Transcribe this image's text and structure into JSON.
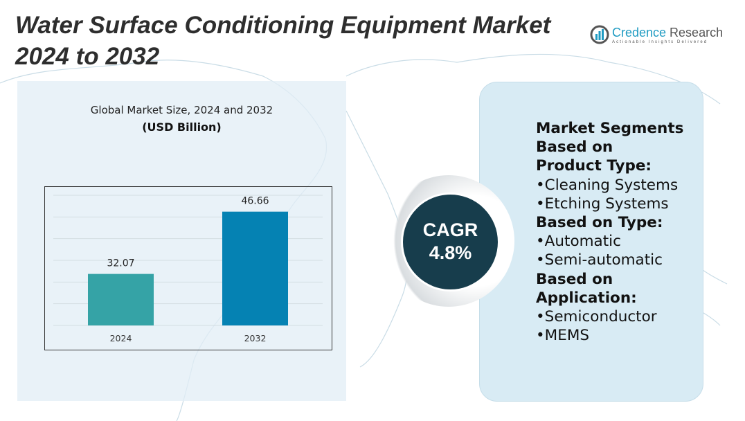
{
  "title_line1": "Water Surface Conditioning Equipment Market",
  "title_line2": "2024 to 2032",
  "logo": {
    "name_part1": "Credence",
    "name_part2": " Research",
    "tagline": "Actionable Insights Delivered"
  },
  "chart_subtitle": "Global Market Size, 2024 and 2032",
  "chart_unit": "(USD Billion)",
  "chart_data": {
    "type": "bar",
    "title": "Global Market Size, 2024 and 2032",
    "ylabel": "USD Billion",
    "categories": [
      "2024",
      "2032"
    ],
    "values": [
      32.07,
      46.66
    ],
    "value_labels": [
      "32.07",
      "46.66"
    ],
    "colors": [
      "#35a3a6",
      "#0582b3"
    ],
    "ylim": [
      20,
      50.5
    ],
    "grid": true
  },
  "cagr": {
    "label": "CAGR",
    "value": "4.8%"
  },
  "segments": {
    "heading": "Market Segments",
    "groups": [
      {
        "title": "Based on Product Type:",
        "items": [
          "•Cleaning Systems",
          "•Etching Systems"
        ]
      },
      {
        "title": "Based on Type:",
        "items": [
          "•Automatic",
          "•Semi-automatic"
        ]
      },
      {
        "title": "Based on Application:",
        "items": [
          "•Semiconductor",
          "•MEMS"
        ]
      }
    ]
  }
}
